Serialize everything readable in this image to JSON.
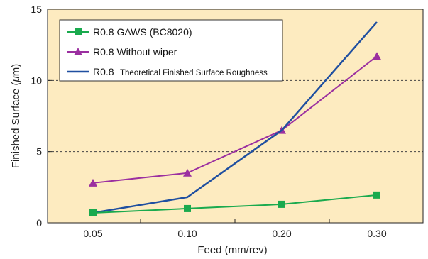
{
  "chart_data": {
    "type": "line",
    "title": "",
    "xlabel": "Feed (mm/rev)",
    "ylabel_prefix": "Finished Surface (",
    "ylabel_mu": "μ",
    "ylabel_suffix": "m)",
    "categories": [
      "0.05",
      "0.10",
      "0.20",
      "0.30"
    ],
    "ylim": [
      0,
      15
    ],
    "yticks": [
      0,
      5,
      10,
      15
    ],
    "ytick_labels": [
      "0",
      "5",
      "10",
      "15"
    ],
    "dashed_gridlines": [
      5,
      10
    ],
    "legend_position": "top-left",
    "series": [
      {
        "name": "R0.8 GAWS (BC8020)",
        "values": [
          0.7,
          1.0,
          1.3,
          1.95
        ],
        "color": "#1aaa4e",
        "marker": "square"
      },
      {
        "name": "R0.8 Without wiper",
        "values": [
          2.8,
          3.5,
          6.5,
          11.7
        ],
        "color": "#9b2fa0",
        "marker": "triangle"
      },
      {
        "name": "R0.8 Theoretical Finished Surface Roughness",
        "values": [
          0.7,
          1.8,
          6.5,
          14.1
        ],
        "color": "#1f4fa0",
        "marker": "none",
        "name_prefix": "R0.8",
        "name_rest": "Theoretical Finished Surface Roughness"
      }
    ],
    "plot_background": "#fdebc0"
  }
}
